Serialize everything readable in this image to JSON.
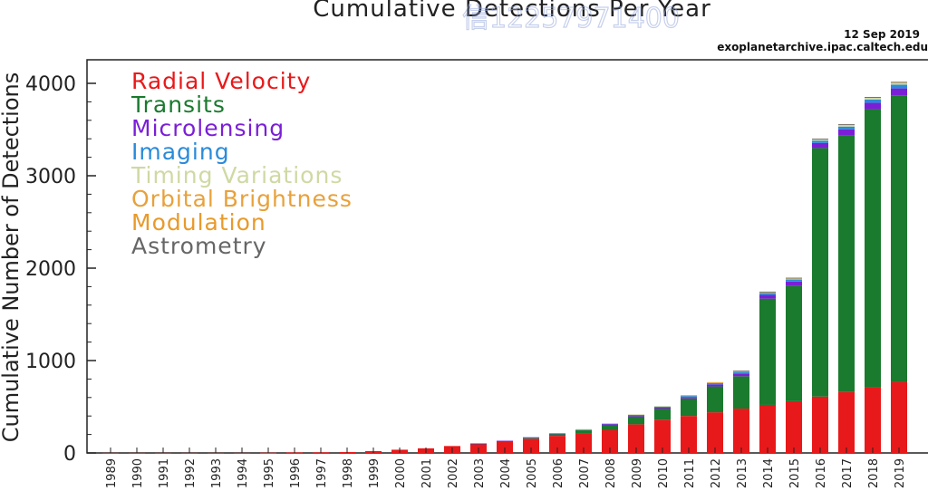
{
  "header": {
    "date": "12 Sep 2019",
    "source": "exoplanetarchive.ipac.caltech.edu"
  },
  "overlay": {
    "stamp_text": "信12257971400"
  },
  "chart_data": {
    "type": "bar",
    "stacked": true,
    "title": "Cumulative Detections Per Year",
    "xlabel": "",
    "ylabel": "Cumulative Number of Detections",
    "ylim": [
      0,
      4200
    ],
    "yticks": [
      0,
      1000,
      2000,
      3000,
      4000
    ],
    "grid": false,
    "legend_position": "top-left",
    "categories": [
      "1989",
      "1990",
      "1991",
      "1992",
      "1993",
      "1994",
      "1995",
      "1996",
      "1997",
      "1998",
      "1999",
      "2000",
      "2001",
      "2002",
      "2003",
      "2004",
      "2005",
      "2006",
      "2007",
      "2008",
      "2009",
      "2010",
      "2011",
      "2012",
      "2013",
      "2014",
      "2015",
      "2016",
      "2017",
      "2018",
      "2019"
    ],
    "series": [
      {
        "name": "Radial Velocity",
        "color": "#e8191a",
        "values": [
          1,
          1,
          1,
          1,
          1,
          1,
          3,
          6,
          7,
          10,
          20,
          35,
          50,
          75,
          100,
          125,
          155,
          185,
          215,
          250,
          310,
          360,
          400,
          440,
          480,
          520,
          560,
          610,
          660,
          710,
          770
        ]
      },
      {
        "name": "Transits",
        "color": "#1a7a2e",
        "values": [
          0,
          0,
          0,
          0,
          0,
          0,
          0,
          0,
          0,
          0,
          0,
          0,
          0,
          0,
          2,
          5,
          10,
          20,
          30,
          55,
          85,
          120,
          190,
          280,
          350,
          1150,
          1250,
          2690,
          2780,
          3010,
          3100
        ]
      },
      {
        "name": "Microlensing",
        "color": "#7b1fd6",
        "values": [
          0,
          0,
          0,
          0,
          0,
          0,
          0,
          0,
          0,
          0,
          0,
          0,
          0,
          0,
          1,
          2,
          4,
          6,
          8,
          10,
          12,
          14,
          16,
          22,
          30,
          40,
          45,
          55,
          62,
          70,
          75
        ]
      },
      {
        "name": "Imaging",
        "color": "#2a8bd9",
        "values": [
          0,
          0,
          0,
          0,
          0,
          0,
          0,
          0,
          0,
          0,
          0,
          0,
          0,
          0,
          0,
          0,
          1,
          2,
          3,
          5,
          8,
          10,
          12,
          15,
          17,
          20,
          22,
          25,
          30,
          35,
          40
        ]
      },
      {
        "name": "Timing Variations",
        "color": "#cfd9a3",
        "values": [
          0,
          0,
          0,
          0,
          0,
          0,
          0,
          0,
          0,
          0,
          0,
          0,
          0,
          0,
          0,
          0,
          0,
          0,
          1,
          2,
          3,
          4,
          5,
          6,
          8,
          10,
          12,
          14,
          16,
          18,
          20
        ]
      },
      {
        "name": "Orbital Brightness",
        "color": "#e8a13b",
        "values": [
          0,
          0,
          0,
          0,
          0,
          0,
          0,
          0,
          0,
          0,
          0,
          0,
          0,
          0,
          0,
          0,
          0,
          0,
          0,
          0,
          0,
          0,
          0,
          0,
          0,
          0,
          0,
          0,
          0,
          0,
          0
        ]
      },
      {
        "name": "Modulation",
        "color": "#e89a2a",
        "values": [
          0,
          0,
          0,
          0,
          0,
          0,
          0,
          0,
          0,
          0,
          0,
          0,
          0,
          0,
          0,
          0,
          0,
          0,
          0,
          0,
          0,
          0,
          2,
          3,
          4,
          5,
          6,
          7,
          8,
          9,
          10
        ]
      },
      {
        "name": "Astrometry",
        "color": "#666666",
        "values": [
          0,
          0,
          0,
          0,
          0,
          0,
          0,
          0,
          0,
          0,
          0,
          0,
          0,
          0,
          0,
          0,
          0,
          0,
          0,
          0,
          0,
          0,
          0,
          0,
          1,
          1,
          1,
          1,
          1,
          1,
          1
        ]
      }
    ]
  }
}
